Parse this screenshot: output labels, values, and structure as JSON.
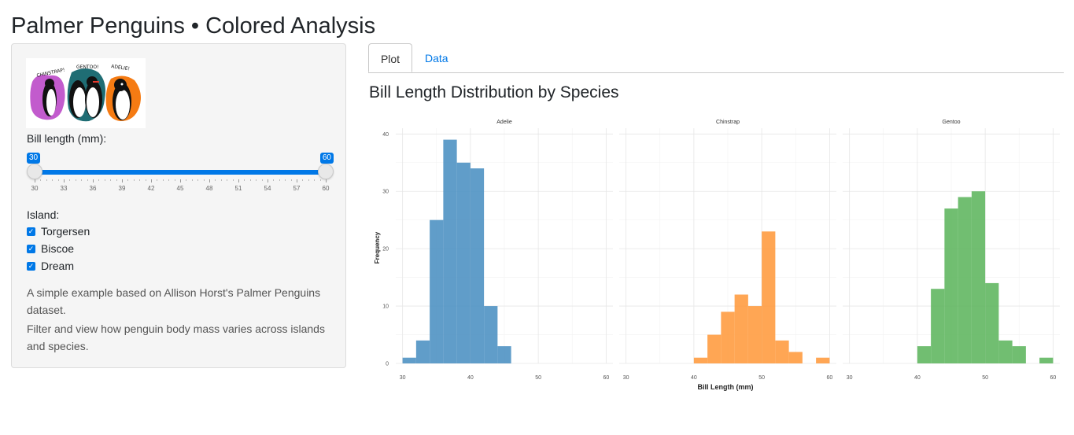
{
  "header": {
    "title": "Palmer Penguins • Colored Analysis"
  },
  "sidebar": {
    "logo": {
      "labels": [
        "CHINSTRAP!",
        "GENTOO!",
        "ADÉLIE!"
      ],
      "colors": {
        "chinstrap": "#c25bcd",
        "gentoo": "#1f6d74",
        "adelie": "#f57b13"
      }
    },
    "slider": {
      "label": "Bill length (mm):",
      "min": 30,
      "max": 60,
      "from": 30,
      "to": 60,
      "from_label": "30",
      "to_label": "60",
      "ticks": [
        "30",
        "33",
        "36",
        "39",
        "42",
        "45",
        "48",
        "51",
        "54",
        "57",
        "60"
      ]
    },
    "island": {
      "label": "Island:",
      "options": [
        {
          "label": "Torgersen",
          "checked": true
        },
        {
          "label": "Biscoe",
          "checked": true
        },
        {
          "label": "Dream",
          "checked": true
        }
      ]
    },
    "description": [
      "A simple example based on Allison Horst's Palmer Penguins dataset.",
      "Filter and view how penguin body mass varies across islands and species."
    ]
  },
  "tabs": [
    {
      "label": "Plot",
      "active": true
    },
    {
      "label": "Data",
      "active": false
    }
  ],
  "plot": {
    "title": "Bill Length Distribution by Species"
  },
  "chart_data": {
    "type": "bar",
    "xlabel": "Bill Length (mm)",
    "ylabel": "Frequency",
    "xlim": [
      29,
      61
    ],
    "ylim": [
      0,
      41
    ],
    "xticks": [
      30,
      40,
      50,
      60
    ],
    "yticks": [
      0,
      10,
      20,
      30,
      40
    ],
    "grid": true,
    "panels": [
      {
        "name": "Adelie",
        "color": "#4a8fc2",
        "bins": [
          [
            31,
            1
          ],
          [
            33,
            4
          ],
          [
            35,
            25
          ],
          [
            37,
            39
          ],
          [
            39,
            35
          ],
          [
            41,
            34
          ],
          [
            43,
            10
          ],
          [
            45,
            3
          ]
        ]
      },
      {
        "name": "Chinstrap",
        "color": "#ff9a3c",
        "bins": [
          [
            41,
            1
          ],
          [
            43,
            5
          ],
          [
            45,
            9
          ],
          [
            47,
            12
          ],
          [
            49,
            10
          ],
          [
            51,
            23
          ],
          [
            53,
            4
          ],
          [
            55,
            2
          ],
          [
            59,
            1
          ]
        ]
      },
      {
        "name": "Gentoo",
        "color": "#5db55d",
        "bins": [
          [
            41,
            3
          ],
          [
            43,
            13
          ],
          [
            45,
            27
          ],
          [
            47,
            29
          ],
          [
            49,
            30
          ],
          [
            51,
            14
          ],
          [
            53,
            4
          ],
          [
            55,
            3
          ],
          [
            59,
            1
          ]
        ]
      }
    ]
  }
}
